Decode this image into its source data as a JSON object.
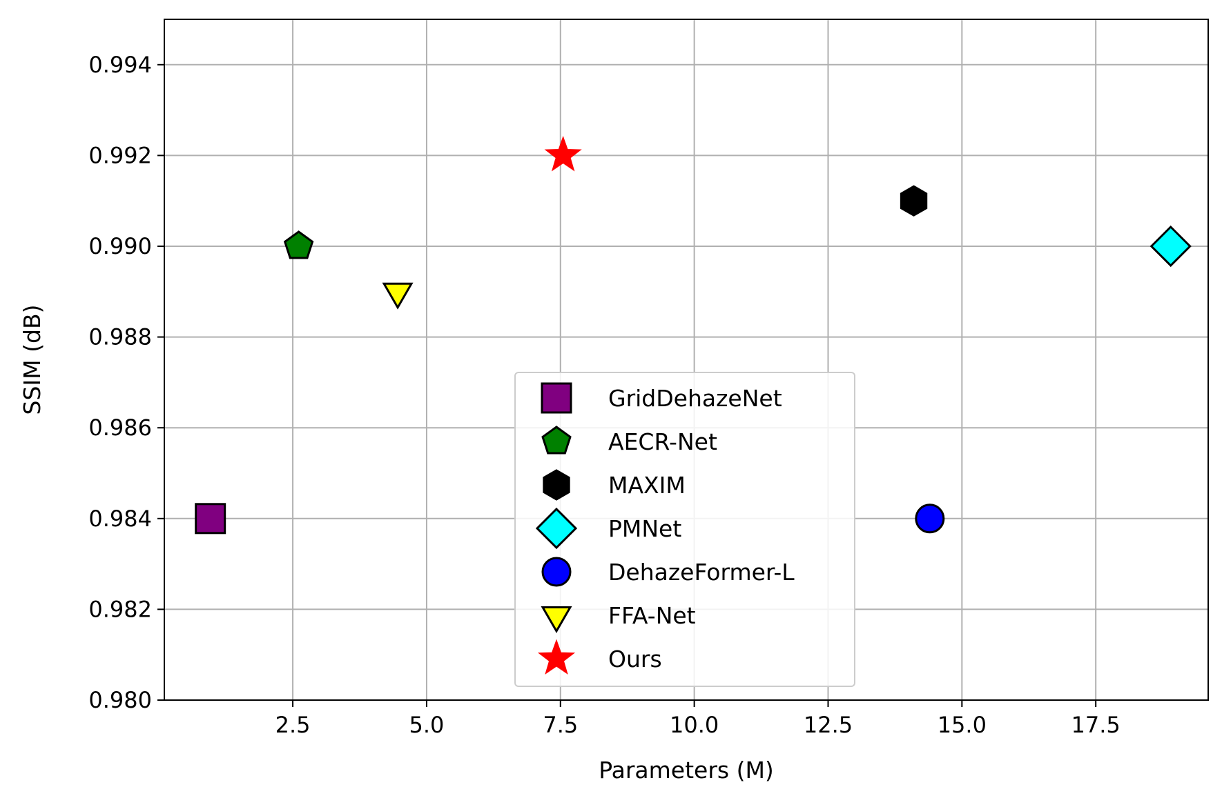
{
  "chart_data": {
    "type": "scatter",
    "title": "",
    "xlabel": "Parameters (M)",
    "ylabel": "SSIM (dB)",
    "xlim": [
      0.1,
      19.6
    ],
    "ylim": [
      0.98,
      0.995
    ],
    "xticks": [
      2.5,
      5.0,
      7.5,
      10.0,
      12.5,
      15.0,
      17.5
    ],
    "xtick_labels": [
      "2.5",
      "5.0",
      "7.5",
      "10.0",
      "12.5",
      "15.0",
      "17.5"
    ],
    "yticks": [
      0.98,
      0.982,
      0.984,
      0.986,
      0.988,
      0.99,
      0.992,
      0.994
    ],
    "ytick_labels": [
      "0.980",
      "0.982",
      "0.984",
      "0.986",
      "0.988",
      "0.990",
      "0.992",
      "0.994"
    ],
    "grid": true,
    "legend_position": "lower-center",
    "series": [
      {
        "name": "GridDehazeNet",
        "marker": "square",
        "color": "#800080",
        "x": 0.96,
        "y": 0.984
      },
      {
        "name": "AECR-Net",
        "marker": "pentagon",
        "color": "#008000",
        "x": 2.61,
        "y": 0.99
      },
      {
        "name": "MAXIM",
        "marker": "hexagon",
        "color": "#000000",
        "x": 14.1,
        "y": 0.991
      },
      {
        "name": "PMNet",
        "marker": "diamond",
        "color": "#00ffff",
        "x": 18.9,
        "y": 0.99
      },
      {
        "name": "DehazeFormer-L",
        "marker": "circle",
        "color": "#0000ff",
        "x": 14.4,
        "y": 0.984
      },
      {
        "name": "FFA-Net",
        "marker": "triangle-down",
        "color": "#ffff00",
        "x": 4.46,
        "y": 0.989
      },
      {
        "name": "Ours",
        "marker": "star",
        "color": "#ff0000",
        "x": 7.55,
        "y": 0.992
      }
    ]
  }
}
